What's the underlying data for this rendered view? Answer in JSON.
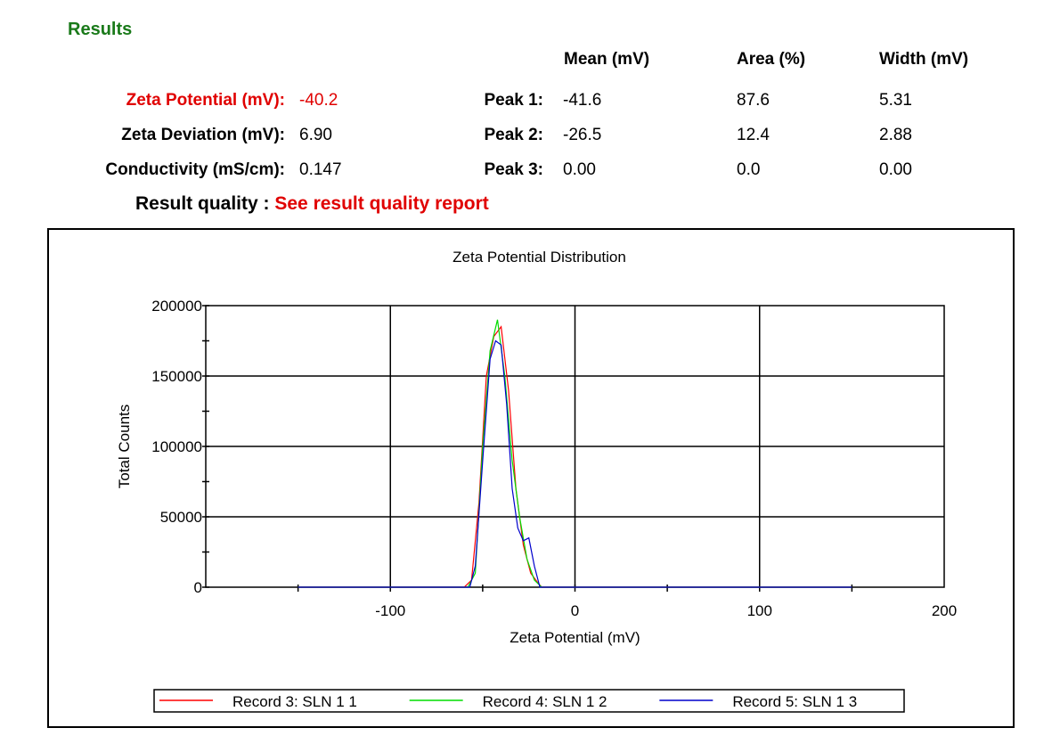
{
  "results": {
    "title": "Results",
    "headers": {
      "mean": "Mean (mV)",
      "area": "Area (%)",
      "width": "Width (mV)"
    },
    "left_rows": [
      {
        "label": "Zeta Potential (mV):",
        "value": "-40.2",
        "highlight": true
      },
      {
        "label": "Zeta Deviation (mV):",
        "value": "6.90",
        "highlight": false
      },
      {
        "label": "Conductivity (mS/cm):",
        "value": "0.147",
        "highlight": false
      }
    ],
    "peaks": [
      {
        "label": "Peak 1:",
        "mean": "-41.6",
        "area": "87.6",
        "width": "5.31"
      },
      {
        "label": "Peak 2:",
        "mean": "-26.5",
        "area": "12.4",
        "width": "2.88"
      },
      {
        "label": "Peak 3:",
        "mean": "0.00",
        "area": "0.0",
        "width": "0.00"
      }
    ],
    "quality_label": "Result quality :",
    "quality_link": "See result quality report",
    "highlight_color": "#e00000",
    "title_color": "#1a7a1a"
  },
  "chart_data": {
    "type": "line",
    "title": "Zeta Potential Distribution",
    "xlabel": "Zeta Potential (mV)",
    "ylabel": "Total Counts",
    "xlim": [
      -200,
      200
    ],
    "ylim": [
      0,
      200000
    ],
    "xticks": [
      -100,
      0,
      100,
      200
    ],
    "yticks": [
      0,
      50000,
      100000,
      150000,
      200000
    ],
    "grid": true,
    "legend": "bottom",
    "series": [
      {
        "name": "Record 3: SLN 1 1",
        "color": "#ff0000",
        "points": [
          [
            -150,
            0
          ],
          [
            -60,
            0
          ],
          [
            -56,
            5000
          ],
          [
            -52,
            60000
          ],
          [
            -48,
            150000
          ],
          [
            -44,
            178000
          ],
          [
            -40,
            185000
          ],
          [
            -36,
            140000
          ],
          [
            -32,
            70000
          ],
          [
            -28,
            30000
          ],
          [
            -24,
            10000
          ],
          [
            -20,
            3000
          ],
          [
            -18,
            0
          ],
          [
            150,
            0
          ]
        ]
      },
      {
        "name": "Record 4: SLN 1 2",
        "color": "#00dd00",
        "points": [
          [
            -150,
            0
          ],
          [
            -58,
            0
          ],
          [
            -54,
            10000
          ],
          [
            -50,
            100000
          ],
          [
            -46,
            168000
          ],
          [
            -42,
            190000
          ],
          [
            -38,
            150000
          ],
          [
            -34,
            90000
          ],
          [
            -30,
            50000
          ],
          [
            -26,
            20000
          ],
          [
            -22,
            5000
          ],
          [
            -18,
            0
          ],
          [
            150,
            0
          ]
        ]
      },
      {
        "name": "Record 5: SLN 1 3",
        "color": "#0000cc",
        "points": [
          [
            -150,
            0
          ],
          [
            -57,
            0
          ],
          [
            -54,
            15000
          ],
          [
            -50,
            90000
          ],
          [
            -46,
            162000
          ],
          [
            -43,
            175000
          ],
          [
            -40,
            172000
          ],
          [
            -37,
            130000
          ],
          [
            -34,
            70000
          ],
          [
            -31,
            42000
          ],
          [
            -28,
            33000
          ],
          [
            -25,
            35000
          ],
          [
            -22,
            15000
          ],
          [
            -19,
            0
          ],
          [
            150,
            0
          ]
        ]
      }
    ]
  }
}
